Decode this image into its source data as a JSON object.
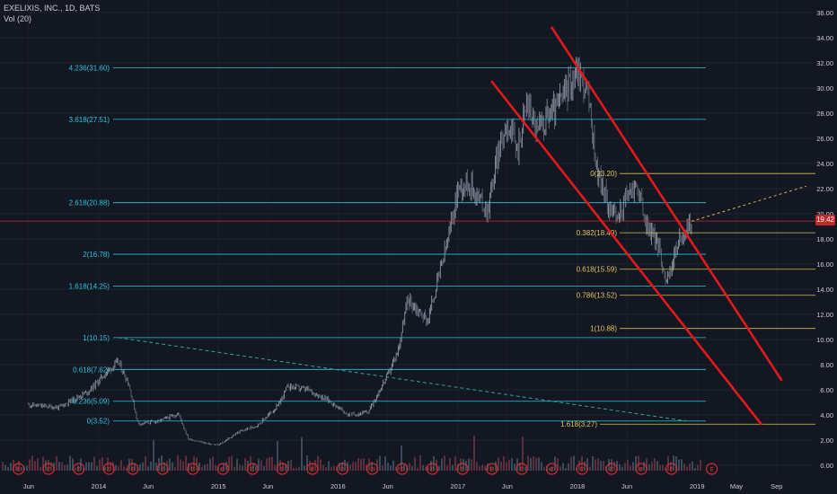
{
  "header": {
    "symbol_line": "EXELIXIS, INC., 1D, BATS",
    "volume_line": "Vol (20)"
  },
  "current_price_label": "19.42",
  "colors": {
    "background": "#131722",
    "candle_up": "#9aa3b0",
    "candle_down": "#6b7280",
    "fib_extension_lines": "#26c6da",
    "fib_extension_text": "#26c6da",
    "fib_retracement_lines": "#d4c24a",
    "fib_retracement_text": "#e0c65a",
    "channel_lines": "#e01a1a",
    "current_price_line": "#c62828",
    "dashed_trendline": "#26a69a",
    "projection_line": "#d4b24a",
    "earnings_badge": "#d32f2f",
    "axis_text": "#c9ccd6"
  },
  "chart_data": {
    "type": "candlestick",
    "title": "EXELIXIS, INC., 1D, BATS",
    "y_axis": {
      "min": 0,
      "max": 36,
      "ticks": [
        "0.00",
        "2.00",
        "4.00",
        "6.00",
        "8.00",
        "10.00",
        "12.00",
        "14.00",
        "16.00",
        "18.00",
        "20.00",
        "22.00",
        "24.00",
        "26.00",
        "28.00",
        "30.00",
        "32.00",
        "34.00",
        "36.00"
      ]
    },
    "x_axis": {
      "ticks": [
        "Jun",
        "2014",
        "Jun",
        "2015",
        "Jun",
        "2016",
        "Jun",
        "2017",
        "Jun",
        "2018",
        "Jun",
        "2019",
        "May",
        "Sep"
      ]
    },
    "price_path": [
      [
        "2013-06-01",
        4.8
      ],
      [
        "2013-09-01",
        4.6
      ],
      [
        "2013-12-01",
        5.9
      ],
      [
        "2014-02-01",
        7.6
      ],
      [
        "2014-03-01",
        8.2
      ],
      [
        "2014-04-01",
        6.6
      ],
      [
        "2014-05-01",
        3.3
      ],
      [
        "2014-07-01",
        3.5
      ],
      [
        "2014-09-01",
        4.1
      ],
      [
        "2014-10-01",
        2.1
      ],
      [
        "2014-12-01",
        1.7
      ],
      [
        "2015-01-01",
        1.6
      ],
      [
        "2015-03-01",
        2.6
      ],
      [
        "2015-05-01",
        3.2
      ],
      [
        "2015-07-01",
        4.7
      ],
      [
        "2015-08-01",
        6.3
      ],
      [
        "2015-10-01",
        6.0
      ],
      [
        "2015-12-01",
        5.2
      ],
      [
        "2016-02-01",
        4.0
      ],
      [
        "2016-04-01",
        4.2
      ],
      [
        "2016-06-01",
        7.2
      ],
      [
        "2016-07-01",
        9.0
      ],
      [
        "2016-08-01",
        13.2
      ],
      [
        "2016-10-01",
        11.5
      ],
      [
        "2016-11-01",
        14.8
      ],
      [
        "2016-12-01",
        17.8
      ],
      [
        "2017-01-01",
        22.0
      ],
      [
        "2017-02-01",
        22.6
      ],
      [
        "2017-04-01",
        20.2
      ],
      [
        "2017-05-01",
        24.5
      ],
      [
        "2017-06-01",
        27.5
      ],
      [
        "2017-07-01",
        25.0
      ],
      [
        "2017-08-01",
        29.0
      ],
      [
        "2017-09-01",
        26.5
      ],
      [
        "2017-10-01",
        27.8
      ],
      [
        "2017-11-01",
        28.5
      ],
      [
        "2017-12-01",
        30.0
      ],
      [
        "2018-01-01",
        31.5
      ],
      [
        "2018-02-01",
        29.5
      ],
      [
        "2018-03-01",
        23.5
      ],
      [
        "2018-04-01",
        21.0
      ],
      [
        "2018-05-01",
        19.5
      ],
      [
        "2018-06-01",
        21.5
      ],
      [
        "2018-07-01",
        22.3
      ],
      [
        "2018-08-01",
        19.0
      ],
      [
        "2018-09-01",
        17.8
      ],
      [
        "2018-10-01",
        14.5
      ],
      [
        "2018-11-01",
        17.5
      ],
      [
        "2018-12-15",
        19.4
      ]
    ],
    "fib_extension_levels": [
      {
        "label": "0(3.52)",
        "value": 3.52
      },
      {
        "label": "0.236(5.09)",
        "value": 5.09
      },
      {
        "label": "0.618(7.62)",
        "value": 7.62
      },
      {
        "label": "1(10.15)",
        "value": 10.15
      },
      {
        "label": "1.618(14.25)",
        "value": 14.25
      },
      {
        "label": "2(16.78)",
        "value": 16.78
      },
      {
        "label": "2.618(20.88)",
        "value": 20.88
      },
      {
        "label": "3.618(27.51)",
        "value": 27.51
      },
      {
        "label": "4.236(31.60)",
        "value": 31.6
      }
    ],
    "fib_retracement_levels": [
      {
        "label": "0(23.20)",
        "value": 23.2
      },
      {
        "label": "0.382(18.49)",
        "value": 18.49
      },
      {
        "label": "0.618(15.59)",
        "value": 15.59
      },
      {
        "label": "0.786(13.52)",
        "value": 13.52
      },
      {
        "label": "1(10.88)",
        "value": 10.88
      },
      {
        "label": "1.618(3.27)",
        "value": 3.27
      }
    ],
    "channel_upper": [
      [
        "2017-10-15",
        34.8
      ],
      [
        "2019-09-15",
        6.8
      ]
    ],
    "channel_lower": [
      [
        "2017-04-15",
        30.5
      ],
      [
        "2019-07-15",
        3.3
      ]
    ],
    "dashed_trendline": [
      [
        "2014-03-01",
        10.15
      ],
      [
        "2018-12-01",
        3.52
      ]
    ],
    "projection_line": [
      [
        "2018-12-15",
        19.4
      ],
      [
        "2019-12-01",
        22.2
      ]
    ],
    "current_price": 19.42,
    "earnings_markers": [
      "2013-05-01",
      "2013-08-01",
      "2013-11-01",
      "2014-02-01",
      "2014-04-15",
      "2014-07-15",
      "2014-10-15",
      "2015-01-15",
      "2015-04-15",
      "2015-07-15",
      "2015-10-15",
      "2016-01-15",
      "2016-04-15",
      "2016-07-15",
      "2016-10-15",
      "2017-01-15",
      "2017-04-15",
      "2017-07-15",
      "2017-10-15",
      "2018-01-15",
      "2018-04-15",
      "2018-07-15",
      "2018-10-15",
      "2019-02-15"
    ],
    "earnings_marker_text": "E"
  }
}
